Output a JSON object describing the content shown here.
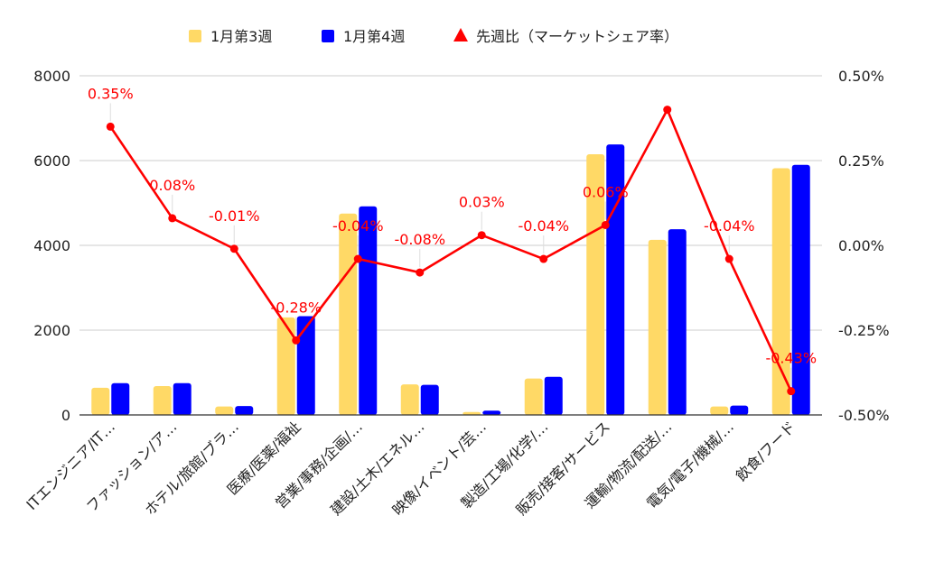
{
  "chart_data": {
    "type": "bar",
    "categories": [
      "ITエンジニア/IT…",
      "ファッション/ア…",
      "ホテル/旅館/ブラ…",
      "医療/医薬/福祉",
      "営業/事務/企画/…",
      "建設/土木/エネル…",
      "映像/イベント/芸…",
      "製造/工場/化学/…",
      "販売/接客/サービス",
      "運輸/物流/配送/…",
      "電気/電子/機械/…",
      "飲食/フード"
    ],
    "series": [
      {
        "name": "1月第3週",
        "kind": "bar",
        "axis": "left",
        "color": "#ffd966",
        "values": [
          640,
          680,
          200,
          2300,
          4750,
          720,
          70,
          860,
          6150,
          4130,
          200,
          5820
        ]
      },
      {
        "name": "1月第4週",
        "kind": "bar",
        "axis": "left",
        "color": "#0000ff",
        "values": [
          750,
          750,
          210,
          2330,
          4920,
          710,
          100,
          900,
          6380,
          4380,
          220,
          5900
        ]
      },
      {
        "name": "先週比（マーケットシェア率）",
        "kind": "line",
        "axis": "right",
        "color": "#ff0000",
        "values": [
          0.35,
          0.08,
          -0.01,
          -0.28,
          -0.04,
          -0.08,
          0.03,
          -0.04,
          0.06,
          0.4,
          -0.04,
          -0.43
        ],
        "labels": [
          "0.35%",
          "0.08%",
          "-0.01%",
          "-0.28%",
          "-0.04%",
          "-0.08%",
          "0.03%",
          "-0.04%",
          "0.06%",
          "",
          "-0.04%",
          "-0.43%"
        ]
      }
    ],
    "yleft": {
      "ylim": [
        0,
        8000
      ],
      "ticks": [
        0,
        2000,
        4000,
        6000,
        8000
      ],
      "tick_labels": [
        "0",
        "2000",
        "4000",
        "6000",
        "8000"
      ]
    },
    "yright": {
      "ylim": [
        -0.5,
        0.5
      ],
      "ticks": [
        -0.5,
        -0.25,
        0,
        0.25,
        0.5
      ],
      "tick_labels": [
        "-0.50%",
        "-0.25%",
        "0.00%",
        "0.25%",
        "0.50%"
      ]
    },
    "grid": true,
    "legend_position": "top-center",
    "gridline_color": "#cccccc"
  }
}
